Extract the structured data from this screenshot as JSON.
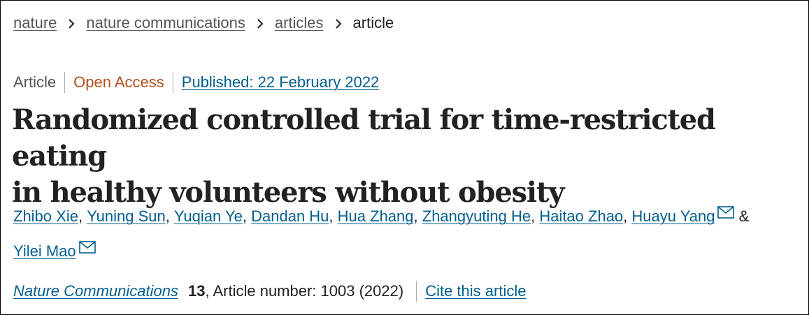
{
  "breadcrumb": {
    "items": [
      {
        "label": "nature"
      },
      {
        "label": "nature communications"
      },
      {
        "label": "articles"
      }
    ],
    "current": "article",
    "separator_icon": "chevron-right-icon"
  },
  "article_meta": {
    "type": "Article",
    "access": "Open Access",
    "published": "Published: 22 February 2022"
  },
  "title": {
    "line1": "Randomized controlled trial for time-restricted eating",
    "line2": "in healthy volunteers without obesity"
  },
  "authors": {
    "list": [
      {
        "name": "Zhibo Xie",
        "sep": ", "
      },
      {
        "name": "Yuning Sun",
        "sep": ", "
      },
      {
        "name": "Yuqian Ye",
        "sep": ", "
      },
      {
        "name": "Dandan Hu",
        "sep": ", "
      },
      {
        "name": "Hua Zhang",
        "sep": ", "
      },
      {
        "name": "Zhangyuting He",
        "sep": ", "
      },
      {
        "name": "Haitao Zhao",
        "sep": ", "
      }
    ],
    "corresponding_1": "Huayu Yang",
    "ampersand": "&",
    "corresponding_2": "Yilei Mao",
    "mail_icon": "mail-icon"
  },
  "citation": {
    "journal": "Nature Communications",
    "volume": "13",
    "article_number": ", Article number: 1003 (2022)",
    "cite_link": "Cite this article"
  },
  "colors": {
    "link": "#025e8d",
    "open_access": "#b3511f",
    "text": "#222222",
    "muted": "#555555"
  }
}
